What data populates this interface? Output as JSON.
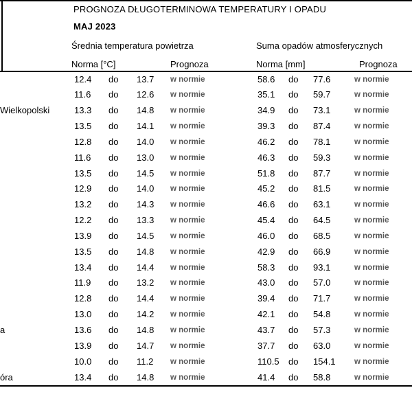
{
  "header": {
    "title": "PROGNOZA DŁUGOTERMINOWA TEMPERATURY I OPADU",
    "subtitle": "MAJ 2023",
    "temp_group_label": "Średnia temperatura powietrza",
    "precip_group_label": "Suma opadów atmosferycznych",
    "temp_norm_label": "Norma [°C]",
    "precip_norm_label": "Norma [mm]",
    "temp_forecast_label": "Prognoza",
    "precip_forecast_label": "Prognoza"
  },
  "table": {
    "range_separator": "do",
    "rows": [
      {
        "city_fragment": "",
        "temp_min": "12.4",
        "temp_max": "13.7",
        "temp_forecast": "w normie",
        "precip_min": "58.6",
        "precip_max": "77.6",
        "precip_forecast": "w normie"
      },
      {
        "city_fragment": "",
        "temp_min": "11.6",
        "temp_max": "12.6",
        "temp_forecast": "w normie",
        "precip_min": "35.1",
        "precip_max": "59.7",
        "precip_forecast": "w normie"
      },
      {
        "city_fragment": "Wielkopolski",
        "temp_min": "13.3",
        "temp_max": "14.8",
        "temp_forecast": "w normie",
        "precip_min": "34.9",
        "precip_max": "73.1",
        "precip_forecast": "w normie"
      },
      {
        "city_fragment": "",
        "temp_min": "13.5",
        "temp_max": "14.1",
        "temp_forecast": "w normie",
        "precip_min": "39.3",
        "precip_max": "87.4",
        "precip_forecast": "w normie"
      },
      {
        "city_fragment": "",
        "temp_min": "12.8",
        "temp_max": "14.0",
        "temp_forecast": "w normie",
        "precip_min": "46.2",
        "precip_max": "78.1",
        "precip_forecast": "w normie"
      },
      {
        "city_fragment": "",
        "temp_min": "11.6",
        "temp_max": "13.0",
        "temp_forecast": "w normie",
        "precip_min": "46.3",
        "precip_max": "59.3",
        "precip_forecast": "w normie"
      },
      {
        "city_fragment": "",
        "temp_min": "13.5",
        "temp_max": "14.5",
        "temp_forecast": "w normie",
        "precip_min": "51.8",
        "precip_max": "87.7",
        "precip_forecast": "w normie"
      },
      {
        "city_fragment": "",
        "temp_min": "12.9",
        "temp_max": "14.0",
        "temp_forecast": "w normie",
        "precip_min": "45.2",
        "precip_max": "81.5",
        "precip_forecast": "w normie"
      },
      {
        "city_fragment": "",
        "temp_min": "13.2",
        "temp_max": "14.3",
        "temp_forecast": "w normie",
        "precip_min": "46.6",
        "precip_max": "63.1",
        "precip_forecast": "w normie"
      },
      {
        "city_fragment": "",
        "temp_min": "12.2",
        "temp_max": "13.3",
        "temp_forecast": "w normie",
        "precip_min": "45.4",
        "precip_max": "64.5",
        "precip_forecast": "w normie"
      },
      {
        "city_fragment": "",
        "temp_min": "13.9",
        "temp_max": "14.5",
        "temp_forecast": "w normie",
        "precip_min": "46.0",
        "precip_max": "68.5",
        "precip_forecast": "w normie"
      },
      {
        "city_fragment": "",
        "temp_min": "13.5",
        "temp_max": "14.8",
        "temp_forecast": "w normie",
        "precip_min": "42.9",
        "precip_max": "66.9",
        "precip_forecast": "w normie"
      },
      {
        "city_fragment": "",
        "temp_min": "13.4",
        "temp_max": "14.4",
        "temp_forecast": "w normie",
        "precip_min": "58.3",
        "precip_max": "93.1",
        "precip_forecast": "w normie"
      },
      {
        "city_fragment": "",
        "temp_min": "11.9",
        "temp_max": "13.2",
        "temp_forecast": "w normie",
        "precip_min": "43.0",
        "precip_max": "57.0",
        "precip_forecast": "w normie"
      },
      {
        "city_fragment": "",
        "temp_min": "12.8",
        "temp_max": "14.4",
        "temp_forecast": "w normie",
        "precip_min": "39.4",
        "precip_max": "71.7",
        "precip_forecast": "w normie"
      },
      {
        "city_fragment": "",
        "temp_min": "13.0",
        "temp_max": "14.2",
        "temp_forecast": "w normie",
        "precip_min": "42.1",
        "precip_max": "54.8",
        "precip_forecast": "w normie"
      },
      {
        "city_fragment": "a",
        "temp_min": "13.6",
        "temp_max": "14.8",
        "temp_forecast": "w normie",
        "precip_min": "43.7",
        "precip_max": "57.3",
        "precip_forecast": "w normie"
      },
      {
        "city_fragment": "",
        "temp_min": "13.9",
        "temp_max": "14.7",
        "temp_forecast": "w normie",
        "precip_min": "37.7",
        "precip_max": "63.0",
        "precip_forecast": "w normie"
      },
      {
        "city_fragment": "",
        "temp_min": "10.0",
        "temp_max": "11.2",
        "temp_forecast": "w normie",
        "precip_min": "110.5",
        "precip_max": "154.1",
        "precip_forecast": "w normie"
      },
      {
        "city_fragment": "óra",
        "temp_min": "13.4",
        "temp_max": "14.8",
        "temp_forecast": "w normie",
        "precip_min": "41.4",
        "precip_max": "58.8",
        "precip_forecast": "w normie"
      }
    ]
  },
  "colors": {
    "text": "#000000",
    "forecast_text": "#595959",
    "background": "#ffffff",
    "border": "#000000"
  }
}
